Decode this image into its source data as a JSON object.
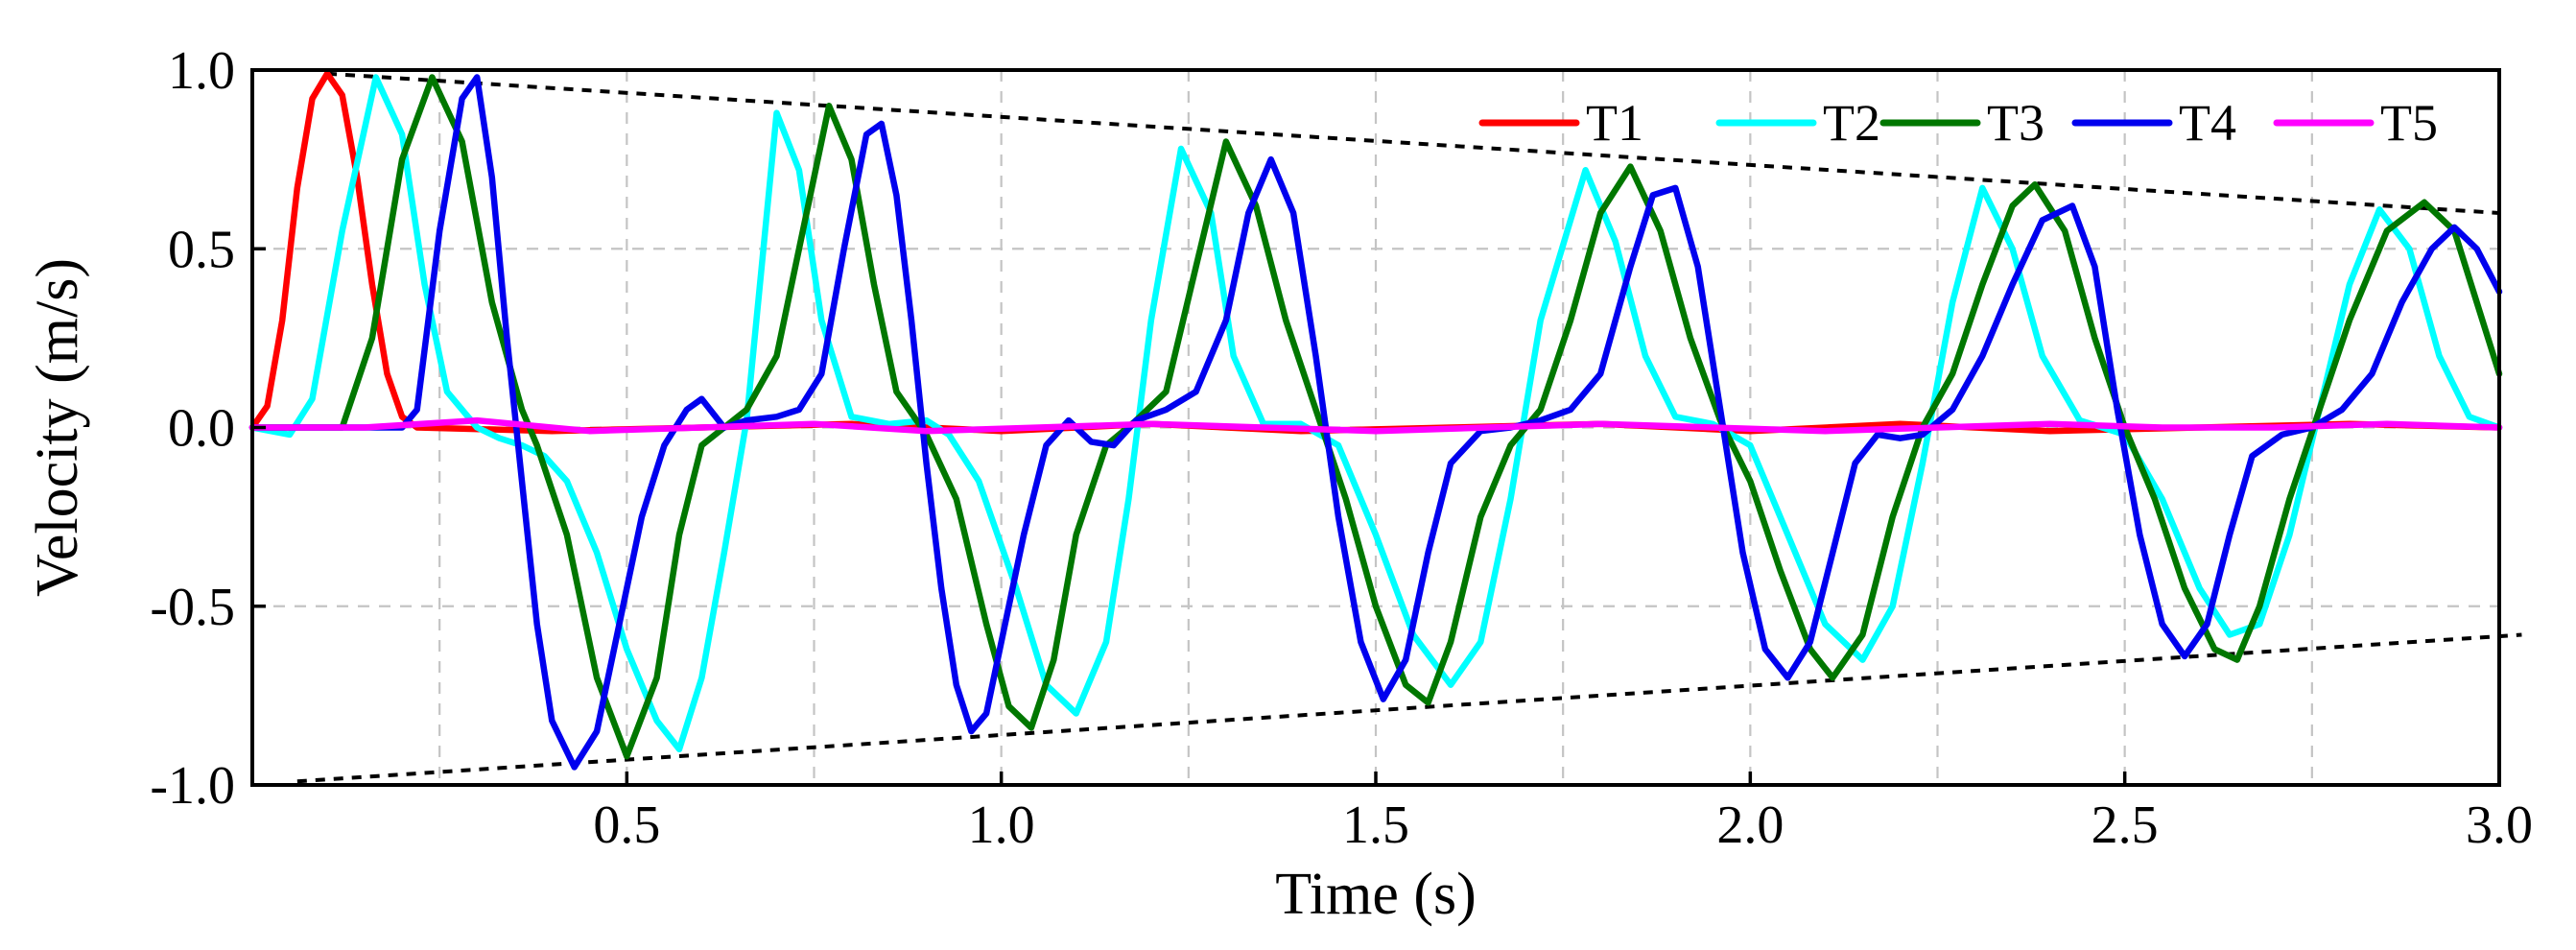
{
  "chart_data": {
    "type": "line",
    "title": "",
    "xlabel": "Time (s)",
    "ylabel": "Velocity (m/s)",
    "xlim": [
      0,
      3.0
    ],
    "ylim": [
      -1.0,
      1.0
    ],
    "grid": true,
    "legend_position": "top-right",
    "x_ticks": [
      0.5,
      1.0,
      1.5,
      2.0,
      2.5,
      3.0
    ],
    "x_tick_labels": [
      "0.5",
      "1.0",
      "1.5",
      "2.0",
      "2.5",
      "3.0"
    ],
    "x_minor_grid": [
      0.25,
      0.75,
      1.25,
      1.75,
      2.25,
      2.75
    ],
    "y_ticks": [
      1.0,
      0.5,
      0.0,
      -0.5,
      -1.0
    ],
    "y_tick_labels": [
      "1.0",
      "0.5",
      "0.0",
      "-0.5",
      "-1.0"
    ],
    "envelope": {
      "upper": [
        [
          0.1,
          0.99
        ],
        [
          3.0,
          0.6
        ]
      ],
      "lower": [
        [
          0.06,
          -0.99
        ],
        [
          3.03,
          -0.58
        ]
      ]
    },
    "series": [
      {
        "name": "T1",
        "color": "#ff0000",
        "points": [
          [
            0.0,
            0.0
          ],
          [
            0.02,
            0.06
          ],
          [
            0.04,
            0.3
          ],
          [
            0.06,
            0.67
          ],
          [
            0.08,
            0.92
          ],
          [
            0.1,
            0.99
          ],
          [
            0.12,
            0.93
          ],
          [
            0.14,
            0.7
          ],
          [
            0.16,
            0.4
          ],
          [
            0.18,
            0.15
          ],
          [
            0.2,
            0.03
          ],
          [
            0.22,
            0.0
          ],
          [
            0.4,
            -0.01
          ],
          [
            0.6,
            0.0
          ],
          [
            0.8,
            0.01
          ],
          [
            1.0,
            -0.01
          ],
          [
            1.2,
            0.01
          ],
          [
            1.4,
            -0.01
          ],
          [
            1.6,
            0.0
          ],
          [
            1.8,
            0.01
          ],
          [
            2.0,
            -0.01
          ],
          [
            2.2,
            0.01
          ],
          [
            2.4,
            -0.01
          ],
          [
            2.6,
            0.0
          ],
          [
            2.8,
            0.01
          ],
          [
            3.0,
            0.0
          ]
        ]
      },
      {
        "name": "T2",
        "color": "#00ffff",
        "points": [
          [
            0.0,
            0.0
          ],
          [
            0.05,
            -0.02
          ],
          [
            0.08,
            0.08
          ],
          [
            0.12,
            0.55
          ],
          [
            0.165,
            0.98
          ],
          [
            0.2,
            0.82
          ],
          [
            0.23,
            0.4
          ],
          [
            0.26,
            0.1
          ],
          [
            0.3,
            0.0
          ],
          [
            0.33,
            -0.03
          ],
          [
            0.36,
            -0.05
          ],
          [
            0.39,
            -0.08
          ],
          [
            0.42,
            -0.15
          ],
          [
            0.46,
            -0.35
          ],
          [
            0.5,
            -0.62
          ],
          [
            0.54,
            -0.82
          ],
          [
            0.57,
            -0.9
          ],
          [
            0.6,
            -0.7
          ],
          [
            0.63,
            -0.35
          ],
          [
            0.66,
            0.02
          ],
          [
            0.68,
            0.45
          ],
          [
            0.7,
            0.88
          ],
          [
            0.73,
            0.72
          ],
          [
            0.76,
            0.3
          ],
          [
            0.8,
            0.03
          ],
          [
            0.85,
            0.01
          ],
          [
            0.9,
            0.02
          ],
          [
            0.93,
            -0.02
          ],
          [
            0.97,
            -0.15
          ],
          [
            1.02,
            -0.45
          ],
          [
            1.06,
            -0.72
          ],
          [
            1.1,
            -0.8
          ],
          [
            1.14,
            -0.6
          ],
          [
            1.17,
            -0.2
          ],
          [
            1.2,
            0.3
          ],
          [
            1.24,
            0.78
          ],
          [
            1.28,
            0.6
          ],
          [
            1.31,
            0.2
          ],
          [
            1.35,
            0.01
          ],
          [
            1.4,
            0.01
          ],
          [
            1.45,
            -0.05
          ],
          [
            1.5,
            -0.3
          ],
          [
            1.55,
            -0.58
          ],
          [
            1.6,
            -0.72
          ],
          [
            1.64,
            -0.6
          ],
          [
            1.68,
            -0.2
          ],
          [
            1.72,
            0.3
          ],
          [
            1.78,
            0.72
          ],
          [
            1.82,
            0.52
          ],
          [
            1.86,
            0.2
          ],
          [
            1.9,
            0.03
          ],
          [
            1.95,
            0.01
          ],
          [
            2.0,
            -0.05
          ],
          [
            2.05,
            -0.3
          ],
          [
            2.1,
            -0.55
          ],
          [
            2.15,
            -0.65
          ],
          [
            2.19,
            -0.5
          ],
          [
            2.23,
            -0.1
          ],
          [
            2.27,
            0.35
          ],
          [
            2.31,
            0.67
          ],
          [
            2.35,
            0.5
          ],
          [
            2.39,
            0.2
          ],
          [
            2.44,
            0.02
          ],
          [
            2.5,
            -0.02
          ],
          [
            2.55,
            -0.2
          ],
          [
            2.6,
            -0.45
          ],
          [
            2.64,
            -0.58
          ],
          [
            2.68,
            -0.55
          ],
          [
            2.72,
            -0.3
          ],
          [
            2.76,
            0.05
          ],
          [
            2.8,
            0.4
          ],
          [
            2.84,
            0.61
          ],
          [
            2.88,
            0.5
          ],
          [
            2.92,
            0.2
          ],
          [
            2.96,
            0.03
          ],
          [
            3.0,
            0.0
          ]
        ]
      },
      {
        "name": "T3",
        "color": "#007700",
        "points": [
          [
            0.0,
            0.0
          ],
          [
            0.12,
            0.0
          ],
          [
            0.16,
            0.25
          ],
          [
            0.2,
            0.75
          ],
          [
            0.24,
            0.98
          ],
          [
            0.28,
            0.8
          ],
          [
            0.32,
            0.35
          ],
          [
            0.36,
            0.05
          ],
          [
            0.38,
            -0.05
          ],
          [
            0.42,
            -0.3
          ],
          [
            0.46,
            -0.7
          ],
          [
            0.5,
            -0.92
          ],
          [
            0.54,
            -0.7
          ],
          [
            0.57,
            -0.3
          ],
          [
            0.6,
            -0.05
          ],
          [
            0.63,
            0.0
          ],
          [
            0.66,
            0.05
          ],
          [
            0.7,
            0.2
          ],
          [
            0.74,
            0.6
          ],
          [
            0.77,
            0.9
          ],
          [
            0.8,
            0.75
          ],
          [
            0.83,
            0.4
          ],
          [
            0.86,
            0.1
          ],
          [
            0.9,
            -0.02
          ],
          [
            0.94,
            -0.2
          ],
          [
            0.98,
            -0.55
          ],
          [
            1.01,
            -0.78
          ],
          [
            1.04,
            -0.84
          ],
          [
            1.07,
            -0.65
          ],
          [
            1.1,
            -0.3
          ],
          [
            1.14,
            -0.05
          ],
          [
            1.18,
            0.02
          ],
          [
            1.22,
            0.1
          ],
          [
            1.26,
            0.45
          ],
          [
            1.3,
            0.8
          ],
          [
            1.34,
            0.62
          ],
          [
            1.38,
            0.3
          ],
          [
            1.42,
            0.05
          ],
          [
            1.46,
            -0.2
          ],
          [
            1.5,
            -0.5
          ],
          [
            1.54,
            -0.72
          ],
          [
            1.57,
            -0.77
          ],
          [
            1.6,
            -0.6
          ],
          [
            1.64,
            -0.25
          ],
          [
            1.68,
            -0.05
          ],
          [
            1.72,
            0.05
          ],
          [
            1.76,
            0.3
          ],
          [
            1.8,
            0.6
          ],
          [
            1.84,
            0.73
          ],
          [
            1.88,
            0.55
          ],
          [
            1.92,
            0.25
          ],
          [
            1.96,
            0.02
          ],
          [
            2.0,
            -0.15
          ],
          [
            2.04,
            -0.4
          ],
          [
            2.08,
            -0.62
          ],
          [
            2.11,
            -0.7
          ],
          [
            2.15,
            -0.58
          ],
          [
            2.19,
            -0.25
          ],
          [
            2.23,
            0.0
          ],
          [
            2.27,
            0.15
          ],
          [
            2.31,
            0.4
          ],
          [
            2.35,
            0.62
          ],
          [
            2.38,
            0.68
          ],
          [
            2.42,
            0.55
          ],
          [
            2.46,
            0.25
          ],
          [
            2.5,
            0.0
          ],
          [
            2.54,
            -0.2
          ],
          [
            2.58,
            -0.45
          ],
          [
            2.62,
            -0.62
          ],
          [
            2.65,
            -0.65
          ],
          [
            2.68,
            -0.5
          ],
          [
            2.72,
            -0.2
          ],
          [
            2.76,
            0.05
          ],
          [
            2.8,
            0.3
          ],
          [
            2.85,
            0.55
          ],
          [
            2.9,
            0.63
          ],
          [
            2.94,
            0.55
          ],
          [
            2.97,
            0.35
          ],
          [
            3.0,
            0.15
          ]
        ]
      },
      {
        "name": "T4",
        "color": "#0000ee",
        "points": [
          [
            0.0,
            0.0
          ],
          [
            0.2,
            0.0
          ],
          [
            0.22,
            0.05
          ],
          [
            0.25,
            0.55
          ],
          [
            0.28,
            0.92
          ],
          [
            0.3,
            0.98
          ],
          [
            0.32,
            0.7
          ],
          [
            0.34,
            0.25
          ],
          [
            0.36,
            -0.15
          ],
          [
            0.38,
            -0.55
          ],
          [
            0.4,
            -0.82
          ],
          [
            0.43,
            -0.95
          ],
          [
            0.46,
            -0.85
          ],
          [
            0.49,
            -0.55
          ],
          [
            0.52,
            -0.25
          ],
          [
            0.55,
            -0.05
          ],
          [
            0.58,
            0.05
          ],
          [
            0.6,
            0.08
          ],
          [
            0.63,
            0.0
          ],
          [
            0.66,
            0.02
          ],
          [
            0.7,
            0.03
          ],
          [
            0.73,
            0.05
          ],
          [
            0.76,
            0.15
          ],
          [
            0.79,
            0.5
          ],
          [
            0.82,
            0.82
          ],
          [
            0.84,
            0.85
          ],
          [
            0.86,
            0.65
          ],
          [
            0.88,
            0.3
          ],
          [
            0.9,
            -0.1
          ],
          [
            0.92,
            -0.45
          ],
          [
            0.94,
            -0.72
          ],
          [
            0.96,
            -0.85
          ],
          [
            0.98,
            -0.8
          ],
          [
            1.0,
            -0.6
          ],
          [
            1.03,
            -0.3
          ],
          [
            1.06,
            -0.05
          ],
          [
            1.09,
            0.02
          ],
          [
            1.12,
            -0.04
          ],
          [
            1.15,
            -0.05
          ],
          [
            1.18,
            0.02
          ],
          [
            1.22,
            0.05
          ],
          [
            1.26,
            0.1
          ],
          [
            1.3,
            0.3
          ],
          [
            1.33,
            0.6
          ],
          [
            1.36,
            0.75
          ],
          [
            1.39,
            0.6
          ],
          [
            1.42,
            0.2
          ],
          [
            1.45,
            -0.25
          ],
          [
            1.48,
            -0.6
          ],
          [
            1.51,
            -0.76
          ],
          [
            1.54,
            -0.65
          ],
          [
            1.57,
            -0.35
          ],
          [
            1.6,
            -0.1
          ],
          [
            1.64,
            -0.01
          ],
          [
            1.68,
            0.0
          ],
          [
            1.72,
            0.02
          ],
          [
            1.76,
            0.05
          ],
          [
            1.8,
            0.15
          ],
          [
            1.84,
            0.45
          ],
          [
            1.87,
            0.65
          ],
          [
            1.9,
            0.67
          ],
          [
            1.93,
            0.45
          ],
          [
            1.96,
            0.05
          ],
          [
            1.99,
            -0.35
          ],
          [
            2.02,
            -0.62
          ],
          [
            2.05,
            -0.7
          ],
          [
            2.08,
            -0.6
          ],
          [
            2.11,
            -0.35
          ],
          [
            2.14,
            -0.1
          ],
          [
            2.17,
            -0.02
          ],
          [
            2.2,
            -0.03
          ],
          [
            2.23,
            -0.02
          ],
          [
            2.27,
            0.05
          ],
          [
            2.31,
            0.2
          ],
          [
            2.35,
            0.4
          ],
          [
            2.39,
            0.58
          ],
          [
            2.43,
            0.62
          ],
          [
            2.46,
            0.45
          ],
          [
            2.49,
            0.05
          ],
          [
            2.52,
            -0.3
          ],
          [
            2.55,
            -0.55
          ],
          [
            2.58,
            -0.64
          ],
          [
            2.61,
            -0.55
          ],
          [
            2.64,
            -0.3
          ],
          [
            2.67,
            -0.08
          ],
          [
            2.71,
            -0.02
          ],
          [
            2.75,
            0.0
          ],
          [
            2.79,
            0.05
          ],
          [
            2.83,
            0.15
          ],
          [
            2.87,
            0.35
          ],
          [
            2.91,
            0.5
          ],
          [
            2.94,
            0.56
          ],
          [
            2.97,
            0.5
          ],
          [
            3.0,
            0.38
          ]
        ]
      },
      {
        "name": "T5",
        "color": "#ff00ff",
        "points": [
          [
            0.0,
            0.0
          ],
          [
            0.15,
            0.0
          ],
          [
            0.3,
            0.02
          ],
          [
            0.45,
            -0.01
          ],
          [
            0.6,
            0.0
          ],
          [
            0.75,
            0.01
          ],
          [
            0.9,
            -0.01
          ],
          [
            1.05,
            0.0
          ],
          [
            1.2,
            0.01
          ],
          [
            1.35,
            0.0
          ],
          [
            1.5,
            -0.01
          ],
          [
            1.65,
            0.0
          ],
          [
            1.8,
            0.01
          ],
          [
            1.95,
            0.0
          ],
          [
            2.1,
            -0.01
          ],
          [
            2.25,
            0.0
          ],
          [
            2.4,
            0.01
          ],
          [
            2.55,
            0.0
          ],
          [
            2.7,
            0.0
          ],
          [
            2.85,
            0.01
          ],
          [
            3.0,
            0.0
          ]
        ]
      }
    ]
  }
}
